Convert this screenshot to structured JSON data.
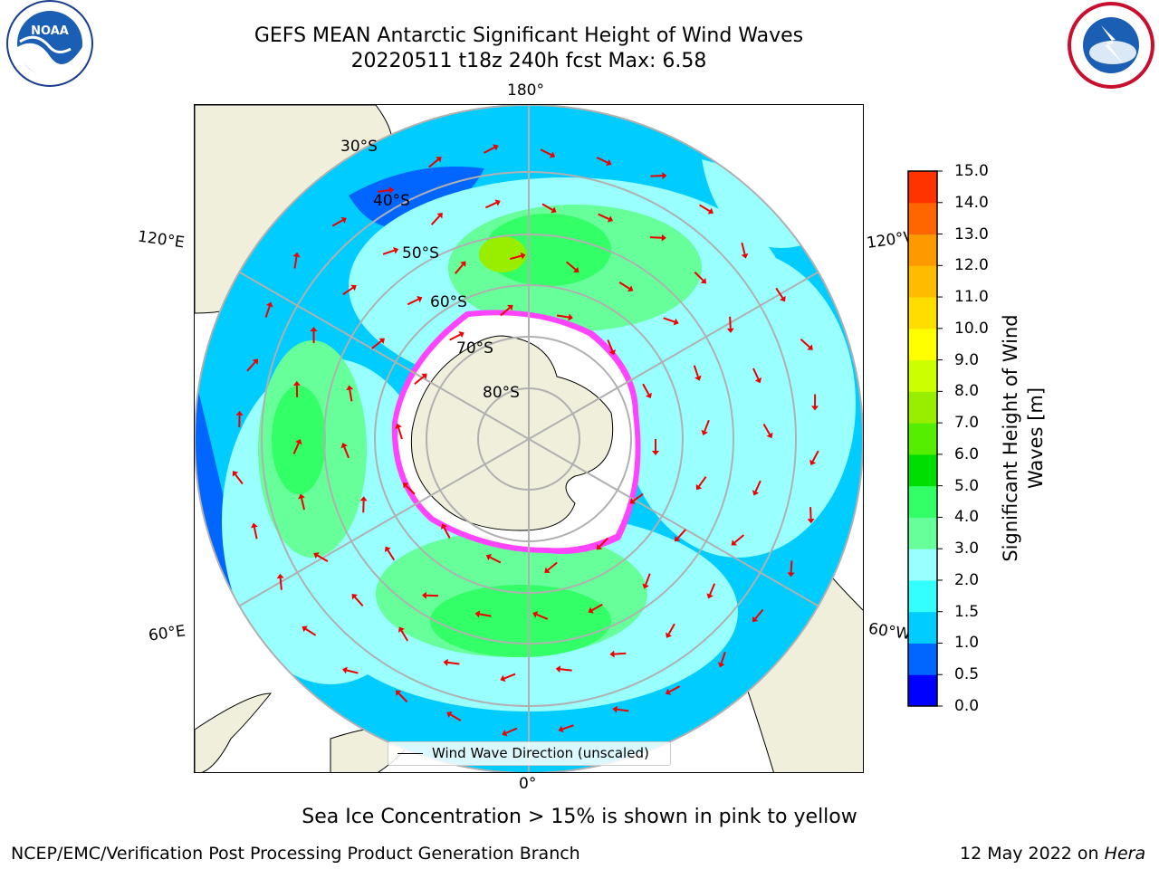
{
  "header": {
    "title_line1": "GEFS MEAN Antarctic Significant Height of Wind Waves",
    "title_line2": "20220511 t18z 240h fcst   Max: 6.58"
  },
  "logos": {
    "left": "noaa-logo",
    "right": "nws-logo"
  },
  "map": {
    "projection": "south-polar-stereographic",
    "meridian_labels": [
      "180°",
      "120°E",
      "120°W",
      "60°E",
      "60°W",
      "0°"
    ],
    "latitude_labels": [
      "30°S",
      "40°S",
      "50°S",
      "60°S",
      "70°S",
      "80°S"
    ],
    "legend_label": "Wind Wave Direction (unscaled)"
  },
  "colorbar": {
    "title": "Significant Height of Wind Waves [m]",
    "title_line1": "Significant Height of Wind",
    "title_line2": "Waves [m]",
    "ticks": [
      "0.0",
      "0.5",
      "1.0",
      "1.5",
      "2.0",
      "3.0",
      "4.0",
      "5.0",
      "6.0",
      "7.0",
      "8.0",
      "9.0",
      "10.0",
      "11.0",
      "12.0",
      "13.0",
      "14.0",
      "15.0"
    ],
    "colors": [
      "#0000ff",
      "#0066ff",
      "#00ccff",
      "#33ffff",
      "#99ffff",
      "#66ff99",
      "#33ff66",
      "#00dd00",
      "#55ee00",
      "#99ee00",
      "#ccff00",
      "#ffff00",
      "#ffdd00",
      "#ffbb00",
      "#ff9900",
      "#ff6600",
      "#ff3300",
      "#ff0000"
    ]
  },
  "footer": {
    "sea_ice_note": "Sea Ice Concentration > 15% is shown in pink to yellow",
    "producer": "NCEP/EMC/Verification Post Processing Product Generation Branch",
    "date": "12 May 2022 on",
    "machine": "Hera"
  }
}
